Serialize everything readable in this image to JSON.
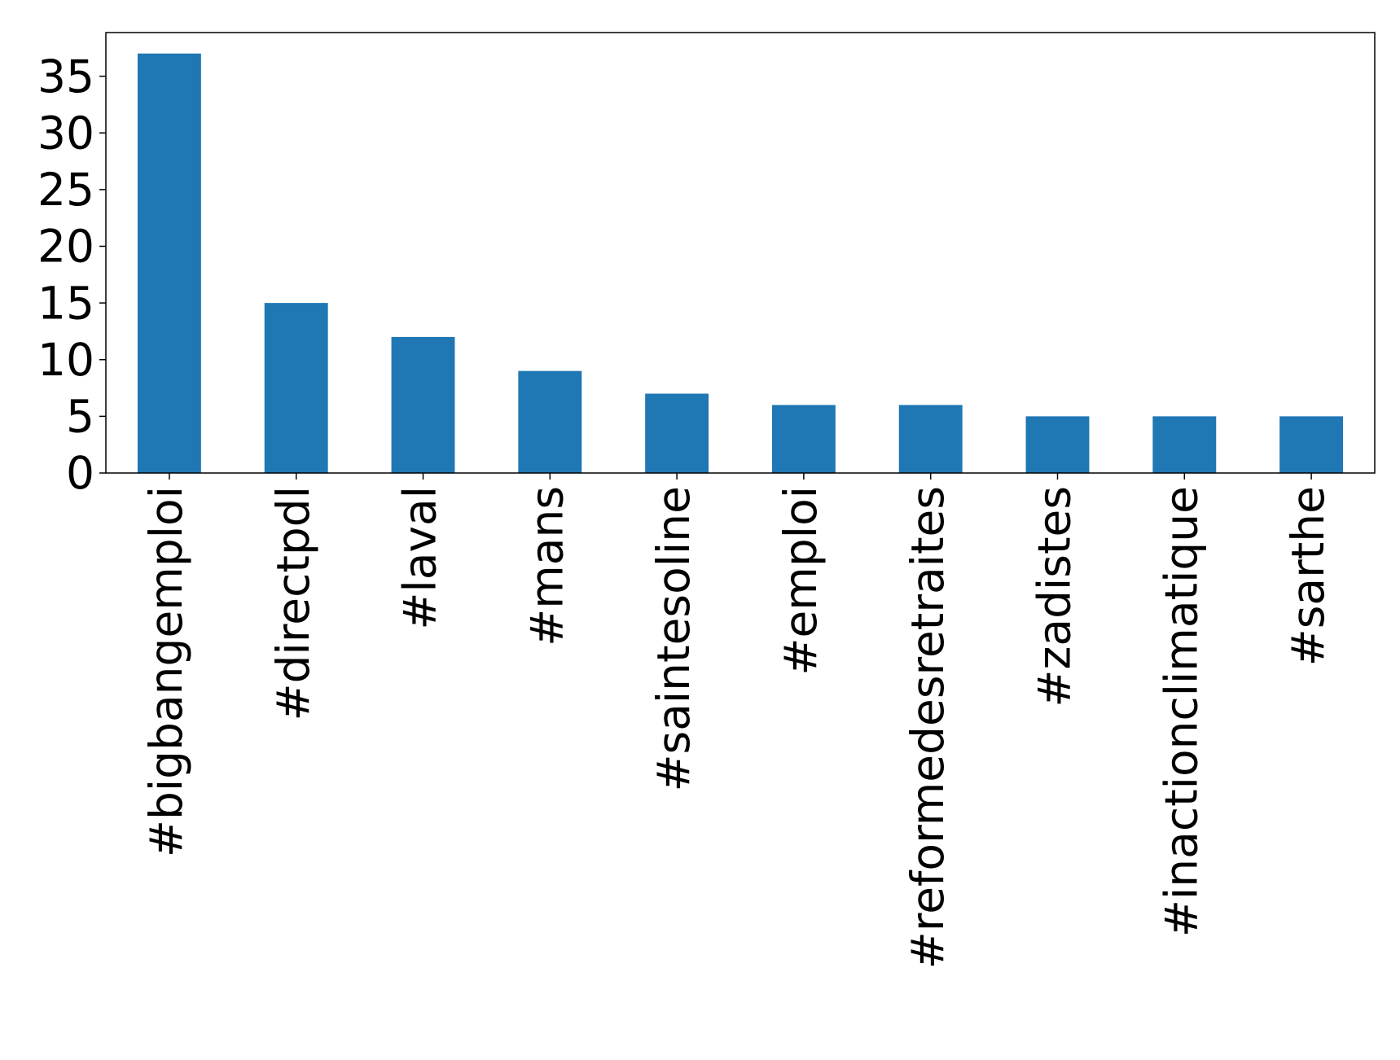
{
  "chart_data": {
    "type": "bar",
    "categories": [
      "#bigbangemploi",
      "#directpdl",
      "#laval",
      "#mans",
      "#saintesoline",
      "#emploi",
      "#reformedesretraites",
      "#zadistes",
      "#inactionclimatique",
      "#sarthe"
    ],
    "values": [
      37,
      15,
      12,
      9,
      7,
      6,
      6,
      5,
      5,
      5
    ],
    "color": "#1f77b4",
    "ylim": [
      0,
      38.85
    ],
    "yticks": [
      0,
      5,
      10,
      15,
      20,
      25,
      30,
      35
    ],
    "grid": false
  }
}
